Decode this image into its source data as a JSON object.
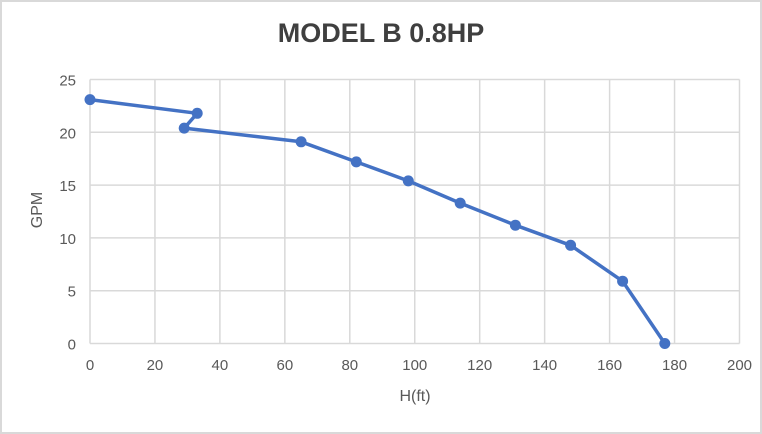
{
  "chart_data": {
    "type": "line",
    "title": "MODEL B 0.8HP",
    "xlabel": "H(ft)",
    "ylabel": "GPM",
    "xlim": [
      0,
      200
    ],
    "ylim": [
      0,
      25
    ],
    "x_ticks": [
      0,
      20,
      40,
      60,
      80,
      100,
      120,
      140,
      160,
      180,
      200
    ],
    "y_ticks": [
      0,
      5,
      10,
      15,
      20,
      25
    ],
    "grid": true,
    "legend": false,
    "series": [
      {
        "name": "MODEL B 0.8HP",
        "marker": "circle",
        "points": [
          [
            0,
            23.1
          ],
          [
            33,
            21.8
          ],
          [
            29,
            20.4
          ],
          [
            65,
            19.1
          ],
          [
            82,
            17.2
          ],
          [
            98,
            15.4
          ],
          [
            114,
            13.3
          ],
          [
            131,
            11.2
          ],
          [
            148,
            9.3
          ],
          [
            164,
            5.9
          ],
          [
            177,
            0
          ]
        ]
      }
    ]
  },
  "styles": {
    "series_color": "#4472C4",
    "grid_color": "#D9D9D9",
    "tick_label_color": "#595959",
    "axis_title_color": "#595959",
    "title_color": "#3F3F3F",
    "frame_border_color": "#D9D9D9",
    "background_color": "#FFFFFF"
  }
}
